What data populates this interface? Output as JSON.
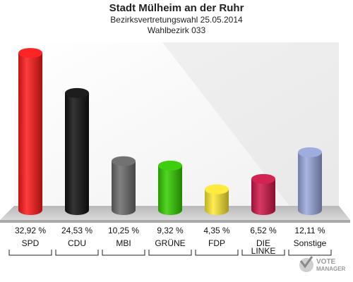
{
  "chart_data": {
    "type": "bar",
    "title": "Stadt Mülheim an der Ruhr",
    "subtitle": "Bezirksvertretungswahl 25.05.2014",
    "subtitle2": "Wahlbezirk 033",
    "categories": [
      "SPD",
      "CDU",
      "MBI",
      "GRÜNE",
      "FDP",
      "DIE LINKE",
      "Sonstige"
    ],
    "values": [
      32.92,
      24.53,
      10.25,
      9.32,
      4.35,
      6.52,
      12.11
    ],
    "value_labels": [
      "32,92 %",
      "24,53 %",
      "10,25 %",
      "9,32 %",
      "4,35 %",
      "6,52 %",
      "12,11 %"
    ],
    "colors": [
      "#ff1a1a",
      "#111111",
      "#6b6b6b",
      "#33cc00",
      "#ffea33",
      "#d0174a",
      "#9aa8dc"
    ],
    "ylim": [
      0,
      35
    ]
  },
  "watermark": {
    "line1": "VOTE",
    "line2": "MANAGER"
  }
}
